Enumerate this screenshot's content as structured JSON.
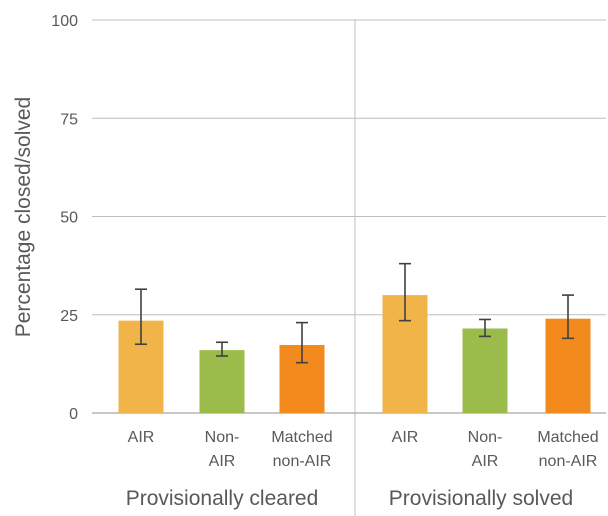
{
  "chart_data": {
    "type": "bar",
    "ylabel": "Percentage closed/solved",
    "ylim": [
      0,
      100
    ],
    "yticks": [
      "0",
      "25",
      "50",
      "75",
      "100"
    ],
    "grid": true,
    "groups": [
      {
        "label": "Provisionally cleared",
        "bars": [
          {
            "label_lines": [
              "AIR"
            ],
            "value": 23.5,
            "err_low": 17.5,
            "err_high": 31.5,
            "color": "#f0b449"
          },
          {
            "label_lines": [
              "Non-",
              "AIR"
            ],
            "value": 16,
            "err_low": 14.5,
            "err_high": 18,
            "color": "#9bbb4a"
          },
          {
            "label_lines": [
              "Matched",
              "non-AIR"
            ],
            "value": 17.3,
            "err_low": 12.8,
            "err_high": 23,
            "color": "#f28a1e"
          }
        ]
      },
      {
        "label": "Provisionally solved",
        "bars": [
          {
            "label_lines": [
              "AIR"
            ],
            "value": 30,
            "err_low": 23.5,
            "err_high": 38,
            "color": "#f0b449"
          },
          {
            "label_lines": [
              "Non-",
              "AIR"
            ],
            "value": 21.5,
            "err_low": 19.5,
            "err_high": 23.8,
            "color": "#9bbb4a"
          },
          {
            "label_lines": [
              "Matched",
              "non-AIR"
            ],
            "value": 24,
            "err_low": 19,
            "err_high": 30,
            "color": "#f28a1e"
          }
        ]
      }
    ]
  }
}
